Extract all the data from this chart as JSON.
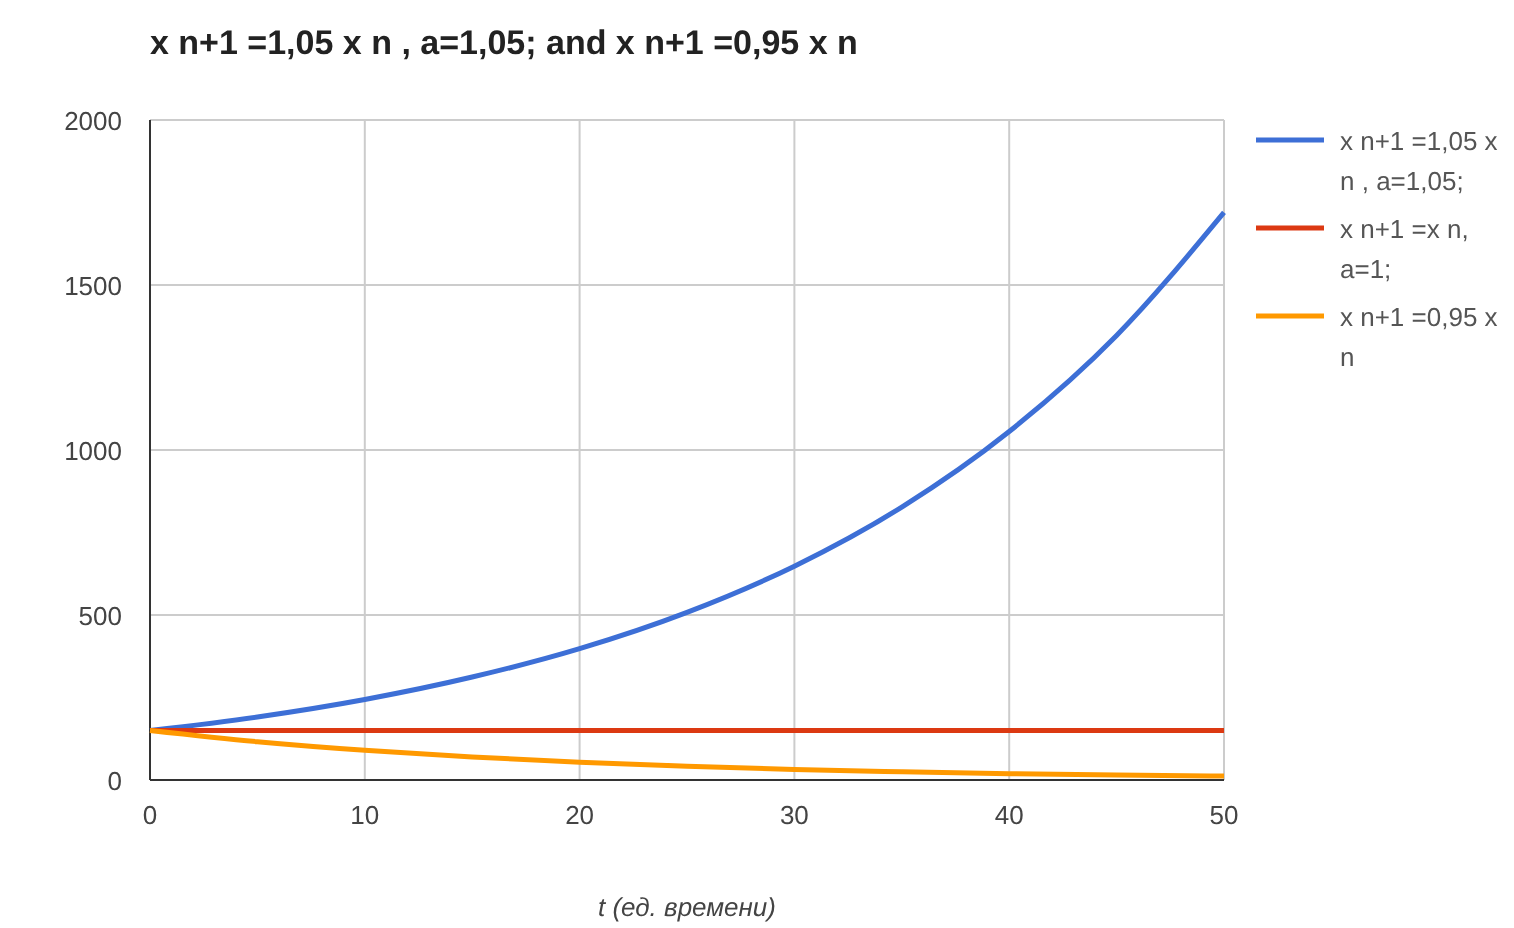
{
  "chart_data": {
    "type": "line",
    "title": "x n+1 =1,05 x n , a=1,05; and x n+1 =0,95 x n",
    "xlabel": "t (ед. времени)",
    "x": [
      0,
      5,
      10,
      15,
      20,
      25,
      30,
      35,
      40,
      45,
      50
    ],
    "series": [
      {
        "name": "x n+1 =1,05 x n , a=1,05;",
        "color": "#3d6fd6",
        "values": [
          150,
          191,
          244,
          312,
          398,
          508,
          648,
          827,
          1056,
          1347,
          1720
        ]
      },
      {
        "name": "x n+1 =x n, a=1;",
        "color": "#dc3912",
        "values": [
          150,
          150,
          150,
          150,
          150,
          150,
          150,
          150,
          150,
          150,
          150
        ]
      },
      {
        "name": "x n+1 =0,95 x n",
        "color": "#ff9900",
        "values": [
          150,
          116,
          90,
          70,
          54,
          42,
          32,
          25,
          19,
          15,
          12
        ]
      }
    ],
    "xlim": [
      0,
      50
    ],
    "xticks": [
      0,
      10,
      20,
      30,
      40,
      50
    ],
    "ylim": [
      0,
      2000
    ],
    "yticks": [
      0,
      500,
      1000,
      1500,
      2000
    ],
    "grid": true,
    "legend": "right",
    "marker": "none",
    "line_style": "solid"
  }
}
